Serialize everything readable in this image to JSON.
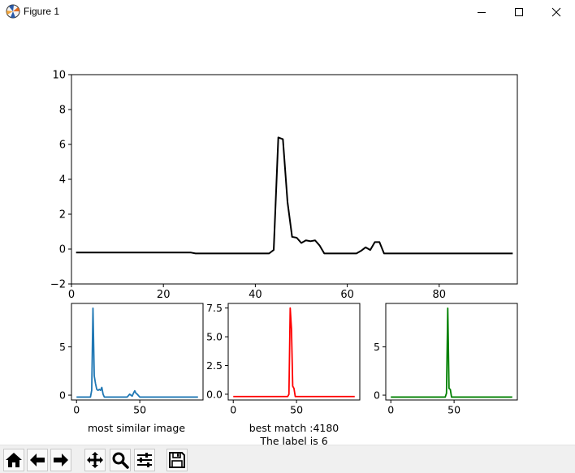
{
  "window": {
    "title": "Figure 1",
    "icon": "matplotlib-icon",
    "controls": [
      "minimize-icon",
      "maximize-icon",
      "close-icon"
    ]
  },
  "figure": {
    "bottom_captions": {
      "left": "most similar image",
      "middle_line1": "best match :4180",
      "middle_line2": "The label is 6"
    }
  },
  "chart_data": [
    {
      "type": "line",
      "title": "",
      "xlabel": "",
      "ylabel": "",
      "xlim": [
        0,
        97
      ],
      "ylim": [
        -2,
        10
      ],
      "xticks": [
        0,
        20,
        40,
        60,
        80
      ],
      "yticks": [
        -2,
        0,
        2,
        4,
        6,
        8,
        10
      ],
      "ytick_labels": [
        "−2",
        "0",
        "2",
        "4",
        "6",
        "8",
        "10"
      ],
      "grid": false,
      "series": [
        {
          "color": "#000000",
          "x": [
            1,
            26,
            27,
            43,
            44,
            45,
            46,
            47,
            48,
            49,
            50,
            51,
            52,
            53,
            54,
            55,
            62,
            63,
            64,
            65,
            66,
            67,
            68,
            96
          ],
          "y": [
            -0.2,
            -0.2,
            -0.25,
            -0.25,
            -0.05,
            6.4,
            6.3,
            2.7,
            0.7,
            0.65,
            0.35,
            0.5,
            0.45,
            0.5,
            0.2,
            -0.25,
            -0.25,
            -0.1,
            0.1,
            -0.05,
            0.4,
            0.4,
            -0.25,
            -0.25
          ]
        }
      ]
    },
    {
      "type": "line",
      "caption": "most similar image",
      "xlim": [
        -4,
        100
      ],
      "ylim": [
        -0.5,
        9.5
      ],
      "xticks": [
        0,
        50
      ],
      "yticks": [
        0,
        5
      ],
      "ytick_labels": [
        "0",
        "5"
      ],
      "grid": false,
      "series": [
        {
          "color": "#1f77b4",
          "x": [
            0,
            11,
            12,
            13,
            14,
            15,
            16,
            17,
            18,
            19,
            20,
            21,
            22,
            40,
            42,
            44,
            45,
            46,
            47,
            48,
            50,
            52,
            96
          ],
          "y": [
            -0.2,
            -0.2,
            0.5,
            9.0,
            2.0,
            1.2,
            0.6,
            0.5,
            0.6,
            0.5,
            0.8,
            0.1,
            -0.2,
            -0.2,
            0.1,
            -0.1,
            0.2,
            0.45,
            0.2,
            0.1,
            -0.2,
            -0.2,
            -0.2
          ]
        }
      ]
    },
    {
      "type": "line",
      "caption": "best match :4180 / The label is 6",
      "xlim": [
        -4,
        100
      ],
      "ylim": [
        -0.5,
        7.9
      ],
      "xticks": [
        0,
        50
      ],
      "yticks": [
        0.0,
        2.5,
        5.0,
        7.5
      ],
      "ytick_labels": [
        "0.0",
        "2.5",
        "5.0",
        "7.5"
      ],
      "grid": false,
      "series": [
        {
          "color": "#ff0000",
          "x": [
            0,
            43,
            44,
            45,
            46,
            47,
            48,
            49,
            96
          ],
          "y": [
            -0.2,
            -0.2,
            0.0,
            7.5,
            5.7,
            0.7,
            0.5,
            -0.2,
            -0.2
          ]
        }
      ]
    },
    {
      "type": "line",
      "xlim": [
        -4,
        100
      ],
      "ylim": [
        -0.5,
        9.5
      ],
      "xticks": [
        0,
        50
      ],
      "yticks": [
        0,
        5
      ],
      "ytick_labels": [
        "0",
        "5"
      ],
      "grid": false,
      "series": [
        {
          "color": "#008000",
          "x": [
            0,
            43,
            44,
            45,
            46,
            47,
            48,
            96
          ],
          "y": [
            -0.2,
            -0.2,
            0.2,
            9.0,
            0.7,
            0.6,
            -0.2,
            -0.2
          ]
        }
      ]
    }
  ],
  "toolbar": {
    "buttons": [
      {
        "name": "home-button",
        "icon": "home-icon"
      },
      {
        "name": "back-button",
        "icon": "back-arrow-icon"
      },
      {
        "name": "forward-button",
        "icon": "forward-arrow-icon"
      },
      {
        "name": "pan-button",
        "icon": "move-icon"
      },
      {
        "name": "zoom-button",
        "icon": "magnifier-icon"
      },
      {
        "name": "configure-subplots-button",
        "icon": "sliders-icon"
      },
      {
        "name": "save-button",
        "icon": "floppy-disk-icon"
      }
    ]
  }
}
